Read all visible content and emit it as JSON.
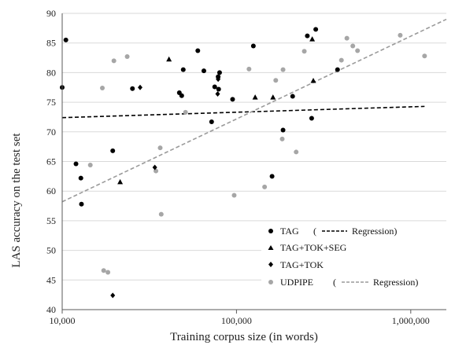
{
  "chart_data": {
    "type": "scatter",
    "xlabel": "Training corpus size (in words)",
    "ylabel": "LAS accuracy on the test set",
    "xscale": "log",
    "xlim": [
      10000,
      1600000
    ],
    "ylim": [
      40,
      90
    ],
    "x_ticks": [
      {
        "value": 10000,
        "label": "10,000"
      },
      {
        "value": 100000,
        "label": "100,000"
      },
      {
        "value": 1000000,
        "label": "1,000,000"
      }
    ],
    "y_ticks": [
      40,
      45,
      50,
      55,
      60,
      65,
      70,
      75,
      80,
      85,
      90
    ],
    "grid": "horizontal",
    "legend_position": "bottom-right",
    "legend": [
      {
        "label": "TAG",
        "extra": "(",
        "line_label": "Regression)",
        "marker": "circle",
        "line": "dashed-black"
      },
      {
        "label": "TAG+TOK+SEG",
        "marker": "triangle"
      },
      {
        "label": "TAG+TOK",
        "marker": "diamond"
      },
      {
        "label": "UDPIPE",
        "extra": "(",
        "line_label": "Regression)",
        "marker": "circle-gray",
        "line": "dashed-gray"
      }
    ],
    "series": [
      {
        "name": "TAG",
        "marker": "circle",
        "color": "#000000",
        "points": [
          [
            10000,
            77.5
          ],
          [
            10500,
            85.5
          ],
          [
            12000,
            64.6
          ],
          [
            12800,
            62.2
          ],
          [
            12900,
            57.8
          ],
          [
            19500,
            66.8
          ],
          [
            25300,
            77.3
          ],
          [
            47000,
            76.6
          ],
          [
            48500,
            76.1
          ],
          [
            49500,
            80.5
          ],
          [
            60000,
            83.7
          ],
          [
            65000,
            80.3
          ],
          [
            72000,
            71.7
          ],
          [
            75000,
            77.6
          ],
          [
            78500,
            79.3
          ],
          [
            79000,
            77.2
          ],
          [
            80000,
            80.0
          ],
          [
            95000,
            75.5
          ],
          [
            125000,
            84.5
          ],
          [
            160000,
            62.5
          ],
          [
            185000,
            70.3
          ],
          [
            210000,
            76.0
          ],
          [
            255000,
            86.2
          ],
          [
            270000,
            72.3
          ],
          [
            285000,
            87.3
          ],
          [
            380000,
            80.5
          ]
        ]
      },
      {
        "name": "TAG+TOK+SEG",
        "marker": "triangle",
        "color": "#000000",
        "points": [
          [
            21500,
            61.5
          ],
          [
            41000,
            82.2
          ],
          [
            128000,
            75.8
          ],
          [
            162000,
            75.8
          ],
          [
            272000,
            85.6
          ],
          [
            276000,
            78.6
          ]
        ]
      },
      {
        "name": "TAG+TOK",
        "marker": "diamond",
        "color": "#000000",
        "points": [
          [
            19500,
            42.4
          ],
          [
            28000,
            77.5
          ],
          [
            34000,
            64.0
          ],
          [
            78000,
            76.4
          ],
          [
            78500,
            78.9
          ]
        ]
      },
      {
        "name": "UDPIPE",
        "marker": "circle",
        "color": "#a6a6a6",
        "points": [
          [
            14500,
            64.4
          ],
          [
            17000,
            77.4
          ],
          [
            17300,
            46.6
          ],
          [
            18300,
            46.3
          ],
          [
            19800,
            82.0
          ],
          [
            23600,
            82.7
          ],
          [
            34500,
            63.4
          ],
          [
            36500,
            67.3
          ],
          [
            37000,
            56.1
          ],
          [
            51000,
            73.3
          ],
          [
            97000,
            59.3
          ],
          [
            118000,
            80.6
          ],
          [
            145000,
            60.7
          ],
          [
            168000,
            78.7
          ],
          [
            183000,
            68.8
          ],
          [
            185000,
            80.5
          ],
          [
            220000,
            66.6
          ],
          [
            245000,
            83.6
          ],
          [
            400000,
            82.1
          ],
          [
            430000,
            85.8
          ],
          [
            465000,
            84.5
          ],
          [
            495000,
            83.7
          ],
          [
            870000,
            86.3
          ],
          [
            1200000,
            82.8
          ]
        ]
      }
    ],
    "regressions": [
      {
        "name": "TAG",
        "color": "#000000",
        "from": [
          10000,
          72.4
        ],
        "to": [
          1200000,
          74.3
        ]
      },
      {
        "name": "UDPIPE",
        "color": "#9a9a9a",
        "from": [
          10000,
          58.2
        ],
        "to": [
          1600000,
          89.0
        ]
      }
    ]
  }
}
